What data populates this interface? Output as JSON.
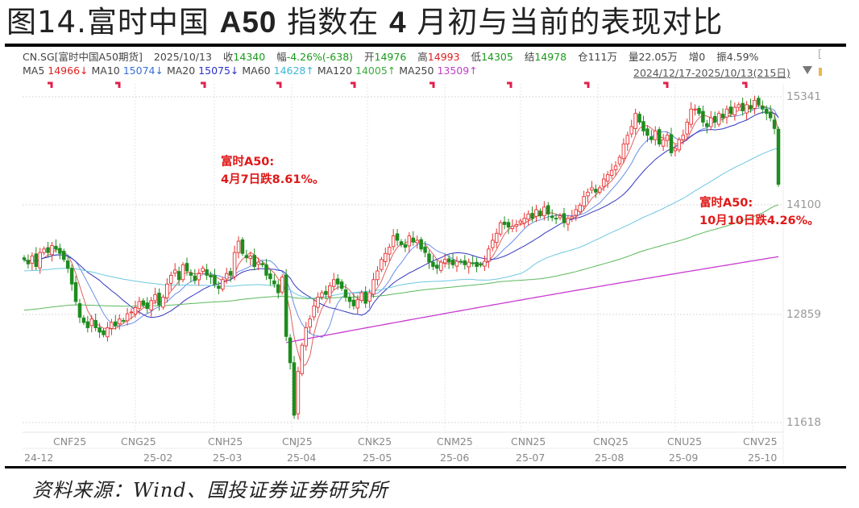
{
  "title": {
    "prefix": "图14.富时中国 ",
    "bold1": "A50",
    "mid": " 指数在 ",
    "bold2": "4",
    "suffix": " 月初与当前的表现对比"
  },
  "header": {
    "symbol": "CN.SG[富时中国A50期货]",
    "date": "2025/10/13",
    "close_label": "收",
    "close": "14340",
    "chg_label": "幅",
    "chg": "-4.26%(-638)",
    "open_label": "开",
    "open": "14976",
    "high_label": "高",
    "high": "14993",
    "low_label": "低",
    "low": "14305",
    "settle_label": "结",
    "settle": "14978",
    "oi_label": "仓",
    "oi": "111万",
    "vol_label": "量",
    "vol": "22.05万",
    "inc_label": "增",
    "inc": "0",
    "amp_label": "振",
    "amp": "4.59%",
    "bracket": "["
  },
  "ma": [
    {
      "label": "MA5",
      "value": "14966↓",
      "color": "#e02020"
    },
    {
      "label": "MA10",
      "value": "15074↓",
      "color": "#3a6fd8"
    },
    {
      "label": "MA20",
      "value": "15075↓",
      "color": "#2a32c8"
    },
    {
      "label": "MA60",
      "value": "14628↑",
      "color": "#3bb6d8"
    },
    {
      "label": "MA120",
      "value": "14005↑",
      "color": "#3caa3c"
    },
    {
      "label": "MA250",
      "value": "13509↑",
      "color": "#c040c8"
    }
  ],
  "range": "2024/12/17-2025/10/13(215日)",
  "annotations": [
    {
      "line1": "富时A50:",
      "line2": "4月7日跌8.61%。"
    },
    {
      "line1": "富时A50:",
      "line2": "10月10日跌4.26%。"
    }
  ],
  "source": "资料来源：Wind、国投证券证券研究所",
  "chart_data": {
    "type": "candlestick",
    "title": "富时中国A50期货 (CN.SG) 日K线",
    "period": "2024/12/17-2025/10/13 (215日)",
    "y_ticks": [
      15341,
      14100,
      12859,
      11618
    ],
    "ylim": [
      11550,
      15420
    ],
    "x_contract_labels": [
      "CNF25",
      "CNG25",
      "CNH25",
      "CNJ25",
      "CNK25",
      "CNM25",
      "CNN25",
      "CNQ25",
      "CNU25",
      "CNV25"
    ],
    "x_month_labels": [
      "24-12",
      "25-02",
      "25-03",
      "25-04",
      "25-05",
      "25-06",
      "25-07",
      "25-08",
      "25-09",
      "25-10"
    ],
    "up_color": "#e83030",
    "down_color": "#1e8c1e",
    "closes": [
      13480,
      13430,
      13520,
      13400,
      13560,
      13600,
      13560,
      13640,
      13600,
      13550,
      13480,
      13380,
      13200,
      13000,
      12820,
      12760,
      12700,
      12800,
      12700,
      12650,
      12620,
      12700,
      12760,
      12720,
      12800,
      12780,
      12860,
      12880,
      12930,
      13000,
      12960,
      12920,
      13010,
      13080,
      12960,
      13050,
      13200,
      13300,
      13360,
      13250,
      13420,
      13350,
      13300,
      13240,
      13320,
      13380,
      13300,
      13280,
      13200,
      13150,
      13250,
      13320,
      13300,
      13560,
      13690,
      13550,
      13500,
      13520,
      13400,
      13450,
      13420,
      13300,
      13260,
      13200,
      13100,
      13280,
      12600,
      12300,
      11700,
      12200,
      12500,
      12700,
      12800,
      12950,
      13050,
      13100,
      13080,
      13180,
      13250,
      13200,
      13150,
      13050,
      13000,
      12950,
      13020,
      13100,
      12980,
      13100,
      13250,
      13350,
      13480,
      13550,
      13620,
      13750,
      13700,
      13650,
      13620,
      13750,
      13680,
      13700,
      13600,
      13560,
      13450,
      13400,
      13380,
      13450,
      13480,
      13450,
      13420,
      13460,
      13450,
      13420,
      13450,
      13440,
      13400,
      13420,
      13460,
      13600,
      13700,
      13780,
      13900,
      13880,
      13850,
      13860,
      13880,
      13920,
      13950,
      14000,
      13950,
      14050,
      13980,
      14080,
      14000,
      13960,
      13950,
      13980,
      13900,
      13950,
      13970,
      14050,
      14100,
      14200,
      14250,
      14300,
      14250,
      14300,
      14400,
      14450,
      14500,
      14550,
      14650,
      14800,
      14900,
      15000,
      15150,
      15050,
      14950,
      14900,
      14850,
      14950,
      14800,
      14850,
      14900,
      14700,
      14750,
      14850,
      14900,
      15050,
      15200,
      15200,
      15150,
      15050,
      15000,
      15100,
      15050,
      15150,
      15100,
      15200,
      15150,
      15220,
      15250,
      15180,
      15250,
      15200,
      15300,
      15250,
      15200,
      15150,
      15100,
      14978,
      14340
    ]
  }
}
